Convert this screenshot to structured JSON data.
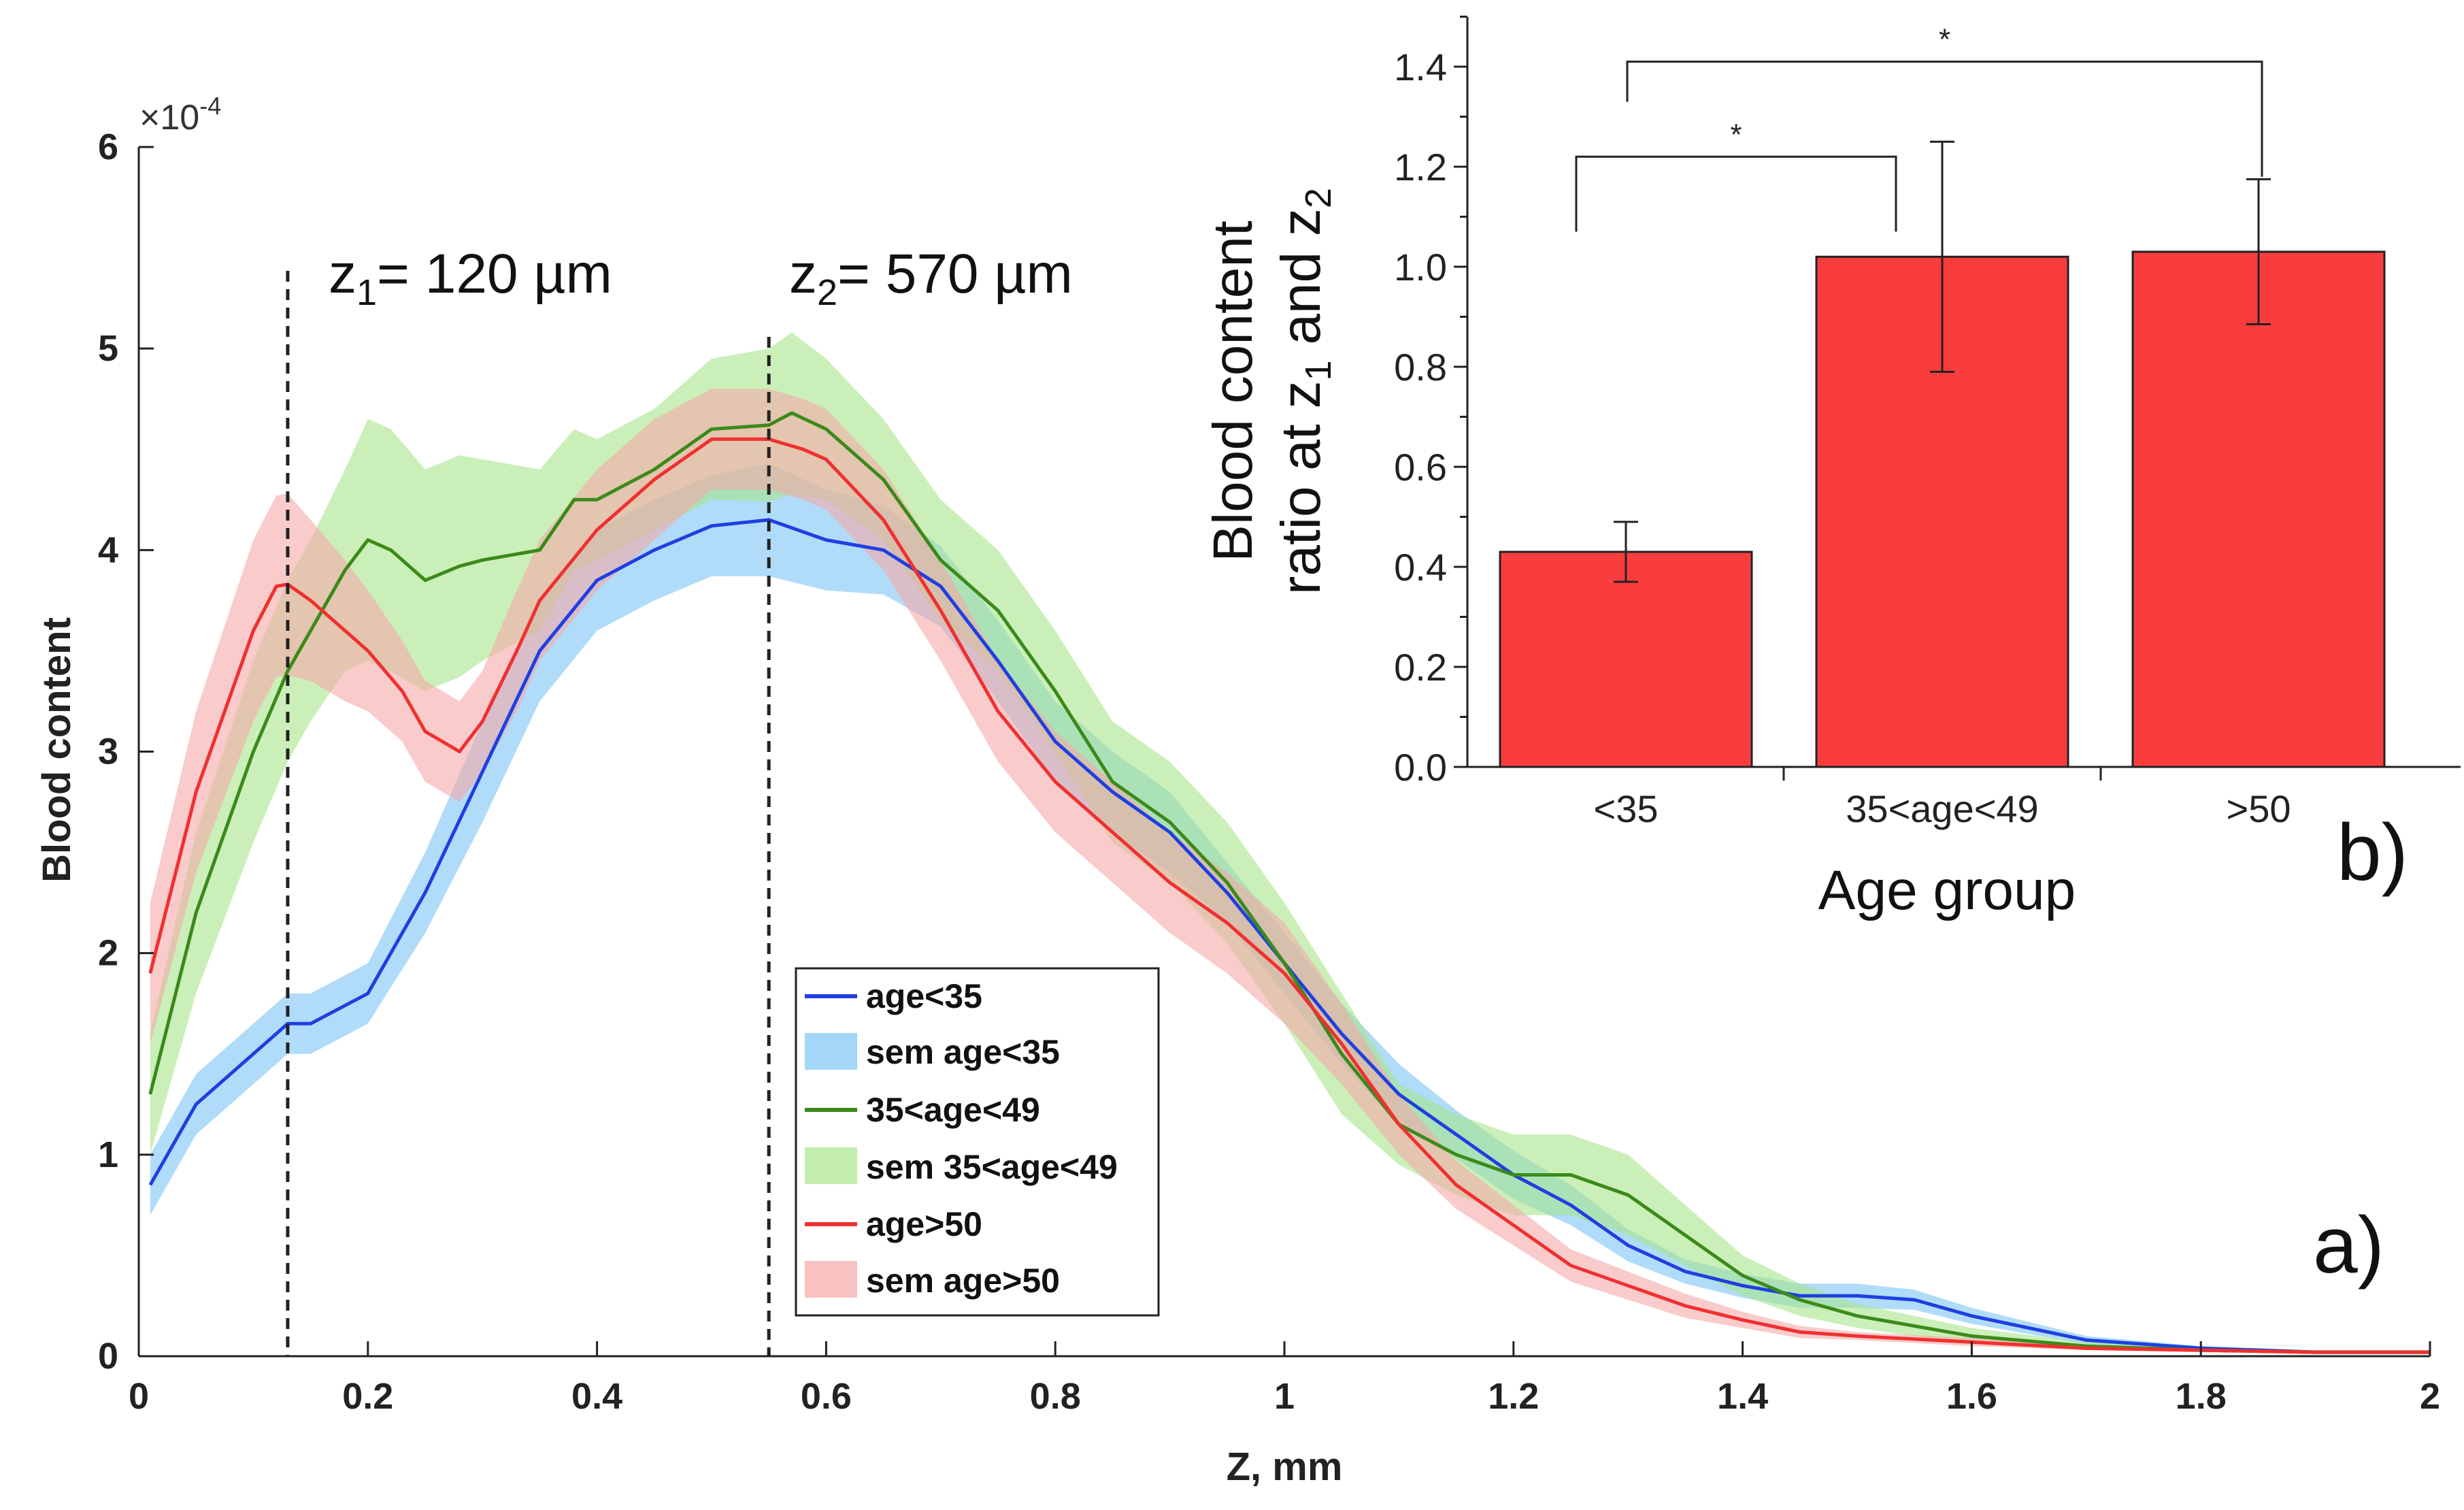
{
  "chart_data": [
    {
      "panel": "a)",
      "type": "line",
      "xlabel": "Z, mm",
      "ylabel": "Blood content",
      "y_exponent_label": "×10",
      "y_exponent_power": "-4",
      "xlim": [
        0,
        2
      ],
      "ylim": [
        0,
        6
      ],
      "x_ticks": [
        0,
        0.2,
        0.4,
        0.6,
        0.8,
        1,
        1.2,
        1.4,
        1.6,
        1.8,
        2
      ],
      "x_tick_labels": [
        "0",
        "0.2",
        "0.4",
        "0.6",
        "0.8",
        "1",
        "1.2",
        "1.4",
        "1.6",
        "1.8",
        "2"
      ],
      "y_ticks": [
        0,
        1,
        2,
        3,
        4,
        5,
        6
      ],
      "y_tick_labels": [
        "0",
        "1",
        "2",
        "3",
        "4",
        "5",
        "6"
      ],
      "grid": false,
      "legend_position": "center-right",
      "markers": [
        {
          "x": 0.13,
          "label_base": "z",
          "label_sub": "1",
          "label_rest": "= 120 µm"
        },
        {
          "x": 0.55,
          "label_base": "z",
          "label_sub": "2",
          "label_rest": "= 570 µm"
        }
      ],
      "series": [
        {
          "name": "age<35",
          "band_name": "sem age<35",
          "color": "#1f3fe0",
          "band_color": "#7cc4f5",
          "x": [
            0.01,
            0.05,
            0.1,
            0.13,
            0.15,
            0.2,
            0.25,
            0.3,
            0.35,
            0.4,
            0.45,
            0.5,
            0.55,
            0.6,
            0.65,
            0.7,
            0.75,
            0.8,
            0.85,
            0.9,
            0.95,
            1.0,
            1.05,
            1.1,
            1.15,
            1.2,
            1.25,
            1.3,
            1.35,
            1.4,
            1.45,
            1.5,
            1.55,
            1.6,
            1.7,
            1.8,
            1.9,
            2.0
          ],
          "y": [
            0.85,
            1.25,
            1.5,
            1.65,
            1.65,
            1.8,
            2.3,
            2.9,
            3.5,
            3.85,
            4.0,
            4.12,
            4.15,
            4.05,
            4.0,
            3.82,
            3.45,
            3.05,
            2.8,
            2.6,
            2.3,
            1.95,
            1.6,
            1.3,
            1.1,
            0.9,
            0.75,
            0.55,
            0.42,
            0.35,
            0.3,
            0.3,
            0.28,
            0.2,
            0.08,
            0.04,
            0.02,
            0.02
          ],
          "sem": [
            0.15,
            0.15,
            0.15,
            0.15,
            0.15,
            0.15,
            0.2,
            0.25,
            0.25,
            0.25,
            0.25,
            0.25,
            0.28,
            0.25,
            0.22,
            0.2,
            0.2,
            0.2,
            0.2,
            0.2,
            0.15,
            0.15,
            0.15,
            0.15,
            0.12,
            0.12,
            0.1,
            0.08,
            0.06,
            0.06,
            0.06,
            0.06,
            0.05,
            0.04,
            0.02,
            0.01,
            0.01,
            0.01
          ]
        },
        {
          "name": "35<age<49",
          "band_name": "sem 35<age<49",
          "color": "#3b8a1a",
          "band_color": "#a9e58a",
          "x": [
            0.01,
            0.05,
            0.1,
            0.13,
            0.15,
            0.18,
            0.2,
            0.22,
            0.25,
            0.28,
            0.3,
            0.35,
            0.38,
            0.4,
            0.45,
            0.5,
            0.55,
            0.57,
            0.6,
            0.65,
            0.7,
            0.75,
            0.8,
            0.85,
            0.9,
            0.95,
            1.0,
            1.05,
            1.1,
            1.15,
            1.2,
            1.25,
            1.3,
            1.35,
            1.4,
            1.45,
            1.5,
            1.6,
            1.7,
            1.8,
            1.9,
            2.0
          ],
          "y": [
            1.3,
            2.2,
            3.0,
            3.4,
            3.6,
            3.9,
            4.05,
            4.0,
            3.85,
            3.92,
            3.95,
            4.0,
            4.25,
            4.25,
            4.4,
            4.6,
            4.62,
            4.68,
            4.6,
            4.35,
            3.95,
            3.7,
            3.3,
            2.85,
            2.65,
            2.35,
            1.95,
            1.5,
            1.15,
            1.0,
            0.9,
            0.9,
            0.8,
            0.6,
            0.4,
            0.28,
            0.2,
            0.1,
            0.05,
            0.03,
            0.02,
            0.02
          ],
          "sem": [
            0.3,
            0.4,
            0.45,
            0.45,
            0.45,
            0.5,
            0.6,
            0.6,
            0.55,
            0.55,
            0.5,
            0.4,
            0.35,
            0.3,
            0.3,
            0.35,
            0.38,
            0.4,
            0.35,
            0.3,
            0.3,
            0.3,
            0.3,
            0.3,
            0.3,
            0.3,
            0.3,
            0.3,
            0.2,
            0.2,
            0.2,
            0.2,
            0.2,
            0.15,
            0.1,
            0.08,
            0.06,
            0.04,
            0.02,
            0.01,
            0.01,
            0.01
          ]
        },
        {
          "name": "age>50",
          "band_name": "sem age>50",
          "color": "#f03030",
          "band_color": "#f5a8a8",
          "x": [
            0.01,
            0.05,
            0.1,
            0.12,
            0.13,
            0.15,
            0.18,
            0.2,
            0.23,
            0.25,
            0.28,
            0.3,
            0.33,
            0.35,
            0.4,
            0.45,
            0.5,
            0.55,
            0.58,
            0.6,
            0.65,
            0.7,
            0.75,
            0.8,
            0.85,
            0.9,
            0.95,
            1.0,
            1.05,
            1.1,
            1.15,
            1.2,
            1.25,
            1.3,
            1.35,
            1.4,
            1.45,
            1.5,
            1.6,
            1.7,
            1.8,
            1.9,
            2.0
          ],
          "y": [
            1.9,
            2.8,
            3.6,
            3.82,
            3.83,
            3.75,
            3.6,
            3.5,
            3.3,
            3.1,
            3.0,
            3.15,
            3.5,
            3.75,
            4.1,
            4.35,
            4.55,
            4.55,
            4.5,
            4.45,
            4.15,
            3.7,
            3.2,
            2.85,
            2.6,
            2.35,
            2.15,
            1.9,
            1.55,
            1.15,
            0.85,
            0.65,
            0.45,
            0.35,
            0.25,
            0.18,
            0.12,
            0.1,
            0.07,
            0.04,
            0.03,
            0.02,
            0.02
          ],
          "sem": [
            0.35,
            0.4,
            0.45,
            0.45,
            0.45,
            0.4,
            0.35,
            0.3,
            0.25,
            0.25,
            0.25,
            0.25,
            0.3,
            0.3,
            0.3,
            0.3,
            0.25,
            0.25,
            0.25,
            0.25,
            0.25,
            0.25,
            0.25,
            0.25,
            0.25,
            0.25,
            0.25,
            0.25,
            0.2,
            0.15,
            0.12,
            0.1,
            0.08,
            0.07,
            0.06,
            0.04,
            0.03,
            0.02,
            0.02,
            0.01,
            0.01,
            0.01,
            0.01
          ]
        }
      ]
    },
    {
      "panel": "b)",
      "type": "bar",
      "xlabel": "Age group",
      "ylabel_line1": "Blood content",
      "ylabel_line2_parts": [
        "ratio at z",
        "1",
        " and z",
        "2"
      ],
      "categories": [
        "<35",
        "35<age<49",
        ">50"
      ],
      "values": [
        0.43,
        1.02,
        1.03
      ],
      "errors": [
        0.06,
        0.23,
        0.145
      ],
      "ylim": [
        0,
        1.5
      ],
      "y_ticks": [
        0.0,
        0.2,
        0.4,
        0.6,
        0.8,
        1.0,
        1.2,
        1.4
      ],
      "y_tick_labels": [
        "0.0",
        "0.2",
        "0.4",
        "0.6",
        "0.8",
        "1.0",
        "1.2",
        "1.4"
      ],
      "bar_color": "#f93d3d",
      "significance": [
        {
          "from": 0,
          "to": 1,
          "level": 1.22,
          "label": "*"
        },
        {
          "from": 0,
          "to": 2,
          "level": 1.41,
          "label": "*"
        }
      ]
    }
  ]
}
